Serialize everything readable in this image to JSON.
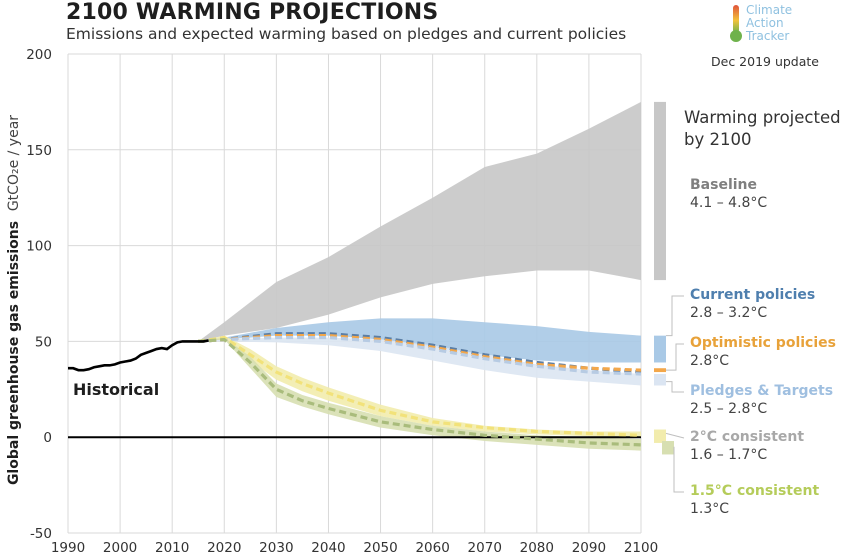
{
  "header": {
    "title": "2100 WARMING PROJECTIONS",
    "subtitle": "Emissions and expected warming based on pledges and current policies",
    "logo": [
      "Climate",
      "Action",
      "Tracker"
    ],
    "update": "Dec 2019 update"
  },
  "axis": {
    "ylabel_main": "Global greenhouse gas emissions",
    "ylabel_unit": "GtCO₂e / year"
  },
  "chart_data": {
    "type": "area",
    "xlim": [
      1990,
      2100
    ],
    "ylim": [
      -50,
      200
    ],
    "x_ticks": [
      1990,
      2000,
      2010,
      2020,
      2030,
      2040,
      2050,
      2060,
      2070,
      2080,
      2090,
      2100
    ],
    "y_ticks": [
      -50,
      0,
      50,
      100,
      150,
      200
    ],
    "zero_line": 0,
    "historical": {
      "name": "Historical",
      "color": "#000000",
      "x": [
        1990,
        1991,
        1992,
        1993,
        1994,
        1995,
        1996,
        1997,
        1998,
        1999,
        2000,
        2001,
        2002,
        2003,
        2004,
        2005,
        2006,
        2007,
        2008,
        2009,
        2010,
        2011,
        2012,
        2013,
        2014,
        2015,
        2016,
        2017
      ],
      "y": [
        36,
        36,
        35,
        35,
        35.5,
        36.5,
        37,
        37.5,
        37.5,
        38,
        39,
        39.5,
        40,
        41,
        43,
        44,
        45,
        46,
        46.5,
        46,
        48,
        49.5,
        50,
        50,
        50,
        50,
        50,
        50.5
      ]
    },
    "bands": [
      {
        "name": "Baseline",
        "color": "#c7c7c7",
        "x": [
          2015,
          2020,
          2030,
          2040,
          2050,
          2060,
          2070,
          2080,
          2090,
          2100
        ],
        "low": [
          50,
          53,
          57,
          64,
          73,
          80,
          84,
          87,
          87,
          82
        ],
        "high": [
          50,
          60,
          81,
          94,
          110,
          125,
          141,
          148,
          161,
          175
        ]
      },
      {
        "name": "Current policies",
        "color": "#a9c9e6",
        "x": [
          2015,
          2020,
          2030,
          2040,
          2050,
          2060,
          2070,
          2080,
          2090,
          2100
        ],
        "low": [
          50,
          51,
          53,
          53,
          51,
          47,
          43,
          40,
          39,
          39
        ],
        "high": [
          50,
          52,
          57,
          60,
          62,
          62,
          60,
          58,
          55,
          53
        ]
      },
      {
        "name": "Pledges & Targets",
        "color": "#dbe5f2",
        "x": [
          2015,
          2020,
          2030,
          2040,
          2050,
          2060,
          2070,
          2080,
          2090,
          2100
        ],
        "low": [
          50,
          50,
          49.5,
          48,
          45,
          40,
          35,
          31,
          29,
          27
        ],
        "high": [
          50,
          51,
          52,
          52,
          51,
          48,
          43,
          38,
          35,
          33
        ]
      },
      {
        "name": "2°C consistent",
        "color": "#f2ecad",
        "x": [
          2015,
          2020,
          2025,
          2030,
          2035,
          2040,
          2050,
          2060,
          2070,
          2080,
          2090,
          2100
        ],
        "low": [
          50,
          51,
          40,
          30,
          24,
          19,
          11,
          6,
          3,
          1.5,
          0.5,
          0
        ],
        "high": [
          50,
          53,
          46,
          37,
          31,
          26,
          17,
          10,
          6,
          4,
          3,
          3
        ]
      },
      {
        "name": "1.5°C consistent",
        "color": "#d7dfb1",
        "x": [
          2015,
          2020,
          2025,
          2030,
          2035,
          2040,
          2050,
          2060,
          2070,
          2080,
          2090,
          2100
        ],
        "low": [
          50,
          51,
          36,
          21,
          16,
          12,
          5,
          1,
          -2,
          -4,
          -6,
          -7
        ],
        "high": [
          50,
          52,
          42,
          28,
          22,
          18,
          11,
          6,
          3,
          1,
          0,
          -1
        ]
      }
    ],
    "dashed_lines": [
      {
        "name": "Current policies",
        "color": "#5b7ea5",
        "x": [
          2015,
          2020,
          2030,
          2040,
          2050,
          2060,
          2070,
          2080,
          2090,
          2100
        ],
        "y": [
          50,
          51,
          54,
          54,
          52,
          48,
          43,
          39,
          36,
          34
        ]
      },
      {
        "name": "Optimistic policies",
        "color": "#f3a74a",
        "x": [
          2015,
          2020,
          2030,
          2040,
          2050,
          2060,
          2070,
          2080,
          2090,
          2100
        ],
        "y": [
          50,
          51,
          53,
          53,
          51,
          47,
          42,
          38,
          36,
          35
        ]
      },
      {
        "name": "Pledges & Targets",
        "color": "#b7cbe3",
        "x": [
          2015,
          2020,
          2030,
          2040,
          2050,
          2060,
          2070,
          2080,
          2090,
          2100
        ],
        "y": [
          50,
          51,
          52,
          52,
          50,
          46,
          41,
          37,
          34,
          33
        ]
      },
      {
        "name": "2°C consistent",
        "color": "#f2e27a",
        "x": [
          2015,
          2020,
          2025,
          2030,
          2035,
          2040,
          2050,
          2060,
          2070,
          2080,
          2090,
          2100
        ],
        "y": [
          50,
          52,
          43,
          34,
          28,
          23,
          14,
          8,
          5,
          3,
          2,
          1
        ]
      },
      {
        "name": "1.5°C consistent",
        "color": "#a9bc7c",
        "x": [
          2015,
          2020,
          2025,
          2030,
          2035,
          2040,
          2050,
          2060,
          2070,
          2080,
          2090,
          2100
        ],
        "y": [
          50,
          51,
          39,
          25,
          19,
          15,
          8,
          4,
          1,
          -1,
          -3,
          -4
        ]
      }
    ],
    "warming_bars": [
      {
        "name": "Baseline",
        "color": "#c7c7c7",
        "low": 82,
        "high": 175
      },
      {
        "name": "Current policies",
        "color": "#a9c9e6",
        "low": 39,
        "high": 53
      },
      {
        "name": "Optimistic policies",
        "color": "#f3a74a",
        "low": 34,
        "high": 36
      },
      {
        "name": "Pledges & Targets",
        "color": "#dbe5f2",
        "low": 27,
        "high": 33
      },
      {
        "name": "2°C consistent",
        "color": "#f2ecad",
        "low": -3,
        "high": 4
      },
      {
        "name": "1.5°C consistent",
        "color": "#d7dfb1",
        "low": -9,
        "high": -2
      }
    ],
    "annotations": [
      "Historical"
    ]
  },
  "legend": {
    "header": "Warming projected by 2100",
    "items": [
      {
        "name": "Baseline",
        "range": "4.1 – 4.8°C",
        "color": "#7f7f7f"
      },
      {
        "name": "Current policies",
        "range": "2.8 – 3.2°C",
        "color": "#4f7fae"
      },
      {
        "name": "Optimistic policies",
        "range": "2.8°C",
        "color": "#e8a23a"
      },
      {
        "name": "Pledges & Targets",
        "range": "2.5 – 2.8°C",
        "color": "#9fbfe0"
      },
      {
        "name": "2°C consistent",
        "range": "1.6 – 1.7°C",
        "color": "#a8a8a8"
      },
      {
        "name": "1.5°C consistent",
        "range": "1.3°C",
        "color": "#b5cc5a"
      }
    ]
  }
}
